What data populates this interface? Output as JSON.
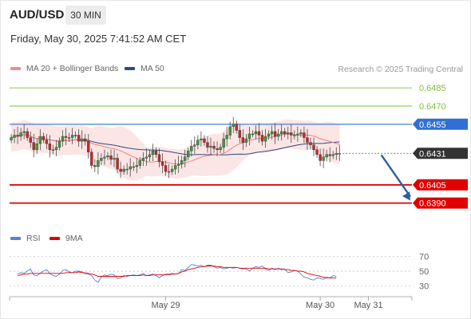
{
  "header": {
    "symbol": "AUD/USD",
    "timeframe": "30 MIN",
    "timestamp": "Friday, May 30, 2025 7:41:52 AM CET"
  },
  "legend_top": [
    {
      "label": "MA 20 + Bollinger Bands",
      "color": "#f28b8b"
    },
    {
      "label": "MA 50",
      "color": "#2e4a7f"
    }
  ],
  "credit": "Research © 2025 Trading Central",
  "legend_bottom": [
    {
      "label": "RSI",
      "color": "#5b7fd6"
    },
    {
      "label": "9MA",
      "color": "#e00000"
    }
  ],
  "x_axis": {
    "ticks": [
      {
        "label": "May 29",
        "index": 48
      },
      {
        "label": "May 30",
        "index": 96
      },
      {
        "label": "May 31",
        "index": 111
      }
    ]
  },
  "chart_data": [
    {
      "type": "candlestick",
      "ylim": [
        0.637,
        0.6495
      ],
      "resistance_levels": [
        {
          "value": 0.6485,
          "label": "0.6485",
          "color": "#7dbf3b"
        },
        {
          "value": 0.647,
          "label": "0.6470",
          "color": "#7dbf3b"
        },
        {
          "value": 0.6455,
          "label": "0.6455",
          "color": "#2f6fd6"
        }
      ],
      "support_levels": [
        {
          "value": 0.6405,
          "label": "0.6405",
          "color": "#e00000"
        },
        {
          "value": 0.639,
          "label": "0.6390",
          "color": "#e00000"
        }
      ],
      "last_price": {
        "value": 0.6431,
        "label": "0.6431",
        "color": "#333333"
      },
      "forecast_arrow": {
        "from_index": 115,
        "from_value": 0.6431,
        "to_index": 124,
        "to_value": 0.6392,
        "color": "#2f5f9e"
      },
      "closes": [
        0.6444,
        0.6446,
        0.6445,
        0.6448,
        0.6449,
        0.6444,
        0.644,
        0.6434,
        0.6439,
        0.6445,
        0.6442,
        0.6439,
        0.6434,
        0.6434,
        0.6436,
        0.6441,
        0.6445,
        0.6444,
        0.6444,
        0.6446,
        0.6446,
        0.6441,
        0.6443,
        0.6441,
        0.6432,
        0.6421,
        0.642,
        0.6425,
        0.6427,
        0.6428,
        0.6429,
        0.6426,
        0.6427,
        0.6418,
        0.6416,
        0.6418,
        0.6418,
        0.642,
        0.642,
        0.6421,
        0.6425,
        0.6427,
        0.6428,
        0.643,
        0.6433,
        0.643,
        0.6424,
        0.6421,
        0.6416,
        0.6416,
        0.6418,
        0.6421,
        0.6422,
        0.6425,
        0.6428,
        0.6433,
        0.6437,
        0.6438,
        0.6442,
        0.6443,
        0.644,
        0.6436,
        0.6437,
        0.6435,
        0.6434,
        0.6436,
        0.6443,
        0.6446,
        0.6453,
        0.6455,
        0.645,
        0.6444,
        0.644,
        0.6443,
        0.6447,
        0.6447,
        0.6449,
        0.6446,
        0.6441,
        0.6445,
        0.6447,
        0.6449,
        0.6445,
        0.6447,
        0.6449,
        0.6447,
        0.6448,
        0.6446,
        0.6446,
        0.6447,
        0.6448,
        0.6444,
        0.644,
        0.6438,
        0.6434,
        0.643,
        0.6425,
        0.6428,
        0.643,
        0.6429,
        0.643,
        0.6431,
        0.6431
      ]
    },
    {
      "type": "line",
      "title": "RSI",
      "ylim": [
        20,
        80
      ],
      "yticks": [
        30,
        50,
        70
      ],
      "rsi": [
        46,
        48,
        47,
        50,
        53,
        45,
        44,
        47,
        50,
        52,
        47,
        44,
        43,
        46,
        51,
        52,
        49,
        48,
        50,
        50,
        49,
        46,
        46,
        44,
        38,
        35,
        42,
        45,
        44,
        46,
        45,
        40,
        41,
        44,
        43,
        44,
        45,
        44,
        45,
        47,
        44,
        45,
        46,
        44,
        41,
        44,
        46,
        46,
        47,
        46,
        47,
        52,
        51,
        55,
        59,
        58,
        57,
        58,
        56,
        58,
        58,
        56,
        54,
        55,
        53,
        54,
        55,
        54,
        55,
        54,
        53,
        53,
        50,
        54,
        56,
        55,
        57,
        53,
        51,
        54,
        52,
        54,
        52,
        53,
        48,
        49,
        51,
        50,
        46,
        42,
        41,
        39,
        38,
        41,
        40,
        39,
        42,
        41,
        44,
        43
      ],
      "ma9": [
        44,
        45,
        46,
        46,
        47,
        47,
        47,
        47,
        47,
        47,
        47,
        47,
        47,
        47,
        47,
        48,
        48,
        48,
        48,
        49,
        48,
        48,
        47,
        46,
        45,
        43,
        43,
        43,
        43,
        43,
        43,
        43,
        43,
        43,
        44,
        44,
        44,
        44,
        44,
        45,
        44,
        44,
        45,
        45,
        45,
        45,
        45,
        45,
        46,
        46,
        47,
        49,
        50,
        52,
        53,
        54,
        55,
        56,
        56,
        57,
        57,
        57,
        56,
        56,
        55,
        55,
        55,
        55,
        55,
        54,
        54,
        54,
        54,
        54,
        54,
        54,
        54,
        54,
        53,
        53,
        53,
        53,
        53,
        52,
        52,
        51,
        51,
        50,
        50,
        49,
        47,
        46,
        45,
        44,
        43,
        42,
        41,
        41,
        41,
        41
      ]
    }
  ]
}
